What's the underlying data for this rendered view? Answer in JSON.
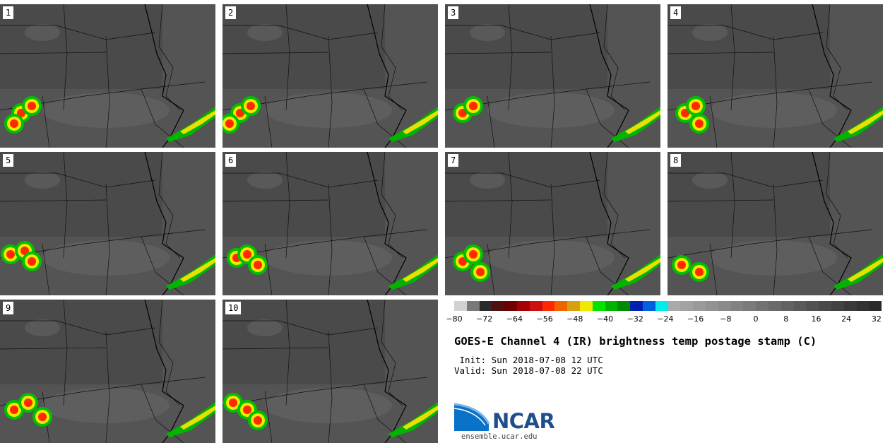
{
  "product_title": "GOES-E Channel 4 (IR) brightness temp postage stamp (C)",
  "init_line": " Init: Sun 2018-07-08 12 UTC",
  "valid_line": "Valid: Sun 2018-07-08 22 UTC",
  "members": [
    "1",
    "2",
    "3",
    "4",
    "5",
    "6",
    "7",
    "8",
    "9",
    "10"
  ],
  "colorbar": {
    "tick_labels": [
      "−80",
      "−72",
      "−64",
      "−56",
      "−48",
      "−40",
      "−32",
      "−24",
      "−16",
      "−8",
      "0",
      "8",
      "16",
      "24",
      "32"
    ],
    "colors": [
      "#d2d2d2",
      "#797979",
      "#2a2a2a",
      "#4f1010",
      "#6e0000",
      "#a80000",
      "#cc1010",
      "#ff2800",
      "#f06400",
      "#d8a010",
      "#f0e800",
      "#00e400",
      "#00b400",
      "#008c00",
      "#0020b0",
      "#0060e0",
      "#00ecec",
      "#aaaaaa",
      "#a2a2a2",
      "#9a9a9a",
      "#929292",
      "#8a8a8a",
      "#828282",
      "#7a7a7a",
      "#727272",
      "#6a6a6a",
      "#626262",
      "#5a5a5a",
      "#525252",
      "#4a4a4a",
      "#424242",
      "#3a3a3a",
      "#323232",
      "#2a2a2a"
    ]
  },
  "logo_text": "NCAR",
  "site_url": "ensemble.ucar.edu"
}
